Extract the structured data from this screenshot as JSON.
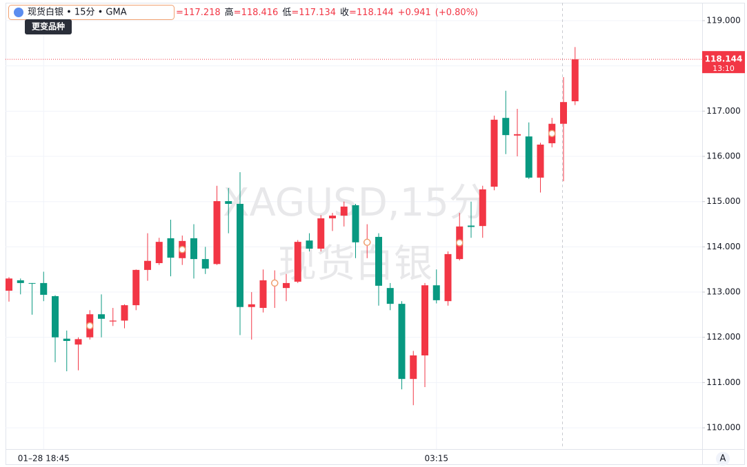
{
  "chart_data": {
    "type": "candlestick",
    "symbol": "现货白银 • 15分 • GMA",
    "tooltip": "更变品种",
    "legend": [
      {
        "value": "=117.218"
      },
      {
        "label": "高",
        "value": "=118.416"
      },
      {
        "label": "低",
        "value": "=117.134"
      },
      {
        "label": "收",
        "value": "=118.144"
      },
      {
        "value": "+0.941"
      },
      {
        "value": "(+0.80%)"
      }
    ],
    "watermark": [
      "XAGUSD,15分",
      "现货白银"
    ],
    "countdown": "13:10",
    "scale_button": "A",
    "up_color": "#f23645",
    "down_color": "#089981",
    "categories": [
      null,
      null,
      null,
      "01–28 18:45",
      null,
      null,
      null,
      null,
      null,
      null,
      null,
      null,
      null,
      null,
      null,
      null,
      null,
      null,
      null,
      null,
      null,
      null,
      null,
      null,
      null,
      null,
      null,
      null,
      null,
      null,
      null,
      null,
      null,
      null,
      null,
      null,
      null,
      "03:15",
      null,
      null,
      null,
      null,
      null,
      null,
      null,
      null,
      null,
      null,
      null,
      null
    ],
    "open": [
      113.03,
      113.26,
      113.2,
      113.2,
      112.91,
      111.97,
      111.84,
      112.0,
      112.51,
      112.35,
      112.37,
      112.71,
      113.49,
      113.64,
      114.19,
      113.75,
      114.19,
      113.73,
      113.62,
      115.01,
      114.95,
      112.67,
      112.65,
      113.18,
      113.09,
      113.23,
      114.14,
      113.96,
      114.63,
      114.69,
      114.92,
      114.08,
      114.22,
      113.09,
      112.74,
      111.08,
      111.6,
      113.15,
      112.8,
      113.73,
      114.47,
      114.46,
      115.33,
      116.85,
      116.46,
      116.44,
      115.53,
      116.29,
      116.72,
      117.218
    ],
    "high": [
      113.33,
      113.3,
      113.2,
      113.45,
      112.93,
      112.15,
      112.0,
      112.6,
      112.95,
      112.65,
      112.73,
      113.5,
      114.3,
      114.2,
      114.6,
      114.25,
      114.5,
      114.0,
      115.35,
      115.3,
      115.65,
      113.0,
      113.5,
      113.48,
      113.4,
      114.15,
      114.3,
      114.7,
      114.75,
      115.0,
      114.95,
      114.5,
      114.3,
      113.2,
      112.8,
      111.7,
      113.2,
      113.5,
      113.9,
      114.75,
      115.0,
      115.35,
      116.9,
      117.45,
      117.05,
      116.75,
      116.3,
      116.85,
      117.75,
      118.416
    ],
    "low": [
      112.79,
      112.95,
      112.5,
      112.8,
      111.45,
      111.25,
      111.27,
      111.95,
      112.0,
      112.25,
      112.2,
      112.6,
      113.25,
      113.6,
      113.35,
      113.6,
      113.3,
      113.4,
      113.6,
      114.3,
      112.05,
      111.95,
      112.55,
      112.65,
      112.8,
      113.2,
      113.9,
      113.9,
      114.35,
      114.45,
      113.75,
      113.75,
      112.7,
      112.6,
      110.85,
      110.5,
      110.9,
      112.75,
      112.7,
      113.7,
      114.2,
      114.2,
      115.25,
      116.05,
      116.0,
      115.5,
      115.2,
      116.2,
      115.45,
      117.134
    ],
    "close": [
      113.3,
      113.2,
      113.19,
      112.94,
      112.0,
      111.92,
      111.96,
      112.51,
      112.41,
      112.37,
      112.71,
      113.49,
      113.69,
      114.11,
      113.76,
      114.13,
      113.73,
      113.52,
      115.01,
      114.95,
      112.67,
      112.73,
      113.26,
      113.22,
      113.2,
      114.11,
      113.96,
      114.63,
      114.69,
      114.89,
      114.1,
      114.12,
      113.14,
      112.74,
      111.08,
      111.6,
      113.15,
      112.82,
      113.84,
      114.45,
      114.44,
      115.27,
      116.81,
      116.47,
      116.49,
      115.53,
      116.26,
      116.72,
      117.2,
      118.144
    ],
    "ylim": [
      109.56,
      119.38
    ],
    "yticks": [
      {
        "value": 110,
        "label": "110.000"
      },
      {
        "value": 111,
        "label": "111.000"
      },
      {
        "value": 112,
        "label": "112.000"
      },
      {
        "value": 113,
        "label": "113.000"
      },
      {
        "value": 114,
        "label": "114.000"
      },
      {
        "value": 115,
        "label": "115.000"
      },
      {
        "value": 116,
        "label": "116.000"
      },
      {
        "value": 117,
        "label": "117.000"
      },
      {
        "value": 118,
        "label": "118.000"
      },
      {
        "value": 119,
        "label": "119.000"
      }
    ],
    "grid": true
  }
}
